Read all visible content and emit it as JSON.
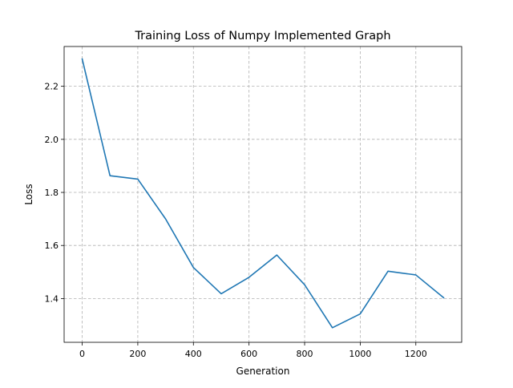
{
  "chart_data": {
    "type": "line",
    "title": "Training Loss of Numpy Implemented Graph",
    "xlabel": "Generation",
    "ylabel": "Loss",
    "xlim": [
      -65,
      1365
    ],
    "ylim": [
      1.235,
      2.35
    ],
    "xticks": [
      0,
      200,
      400,
      600,
      800,
      1000,
      1200
    ],
    "yticks": [
      1.4,
      1.6,
      1.8,
      2.0,
      2.2
    ],
    "xtick_labels": [
      "0",
      "200",
      "400",
      "600",
      "800",
      "1000",
      "1200"
    ],
    "ytick_labels": [
      "1.4",
      "1.6",
      "1.8",
      "2.0",
      "2.2"
    ],
    "grid": true,
    "grid_style": "dashed",
    "legend": false,
    "series": [
      {
        "color": "#1f77b4",
        "x": [
          0,
          100,
          200,
          300,
          400,
          500,
          600,
          700,
          800,
          900,
          1000,
          1100,
          1200,
          1300
        ],
        "y": [
          2.303,
          1.863,
          1.85,
          1.7,
          1.517,
          1.418,
          1.48,
          1.564,
          1.452,
          1.29,
          1.342,
          1.503,
          1.489,
          1.403
        ]
      }
    ]
  }
}
